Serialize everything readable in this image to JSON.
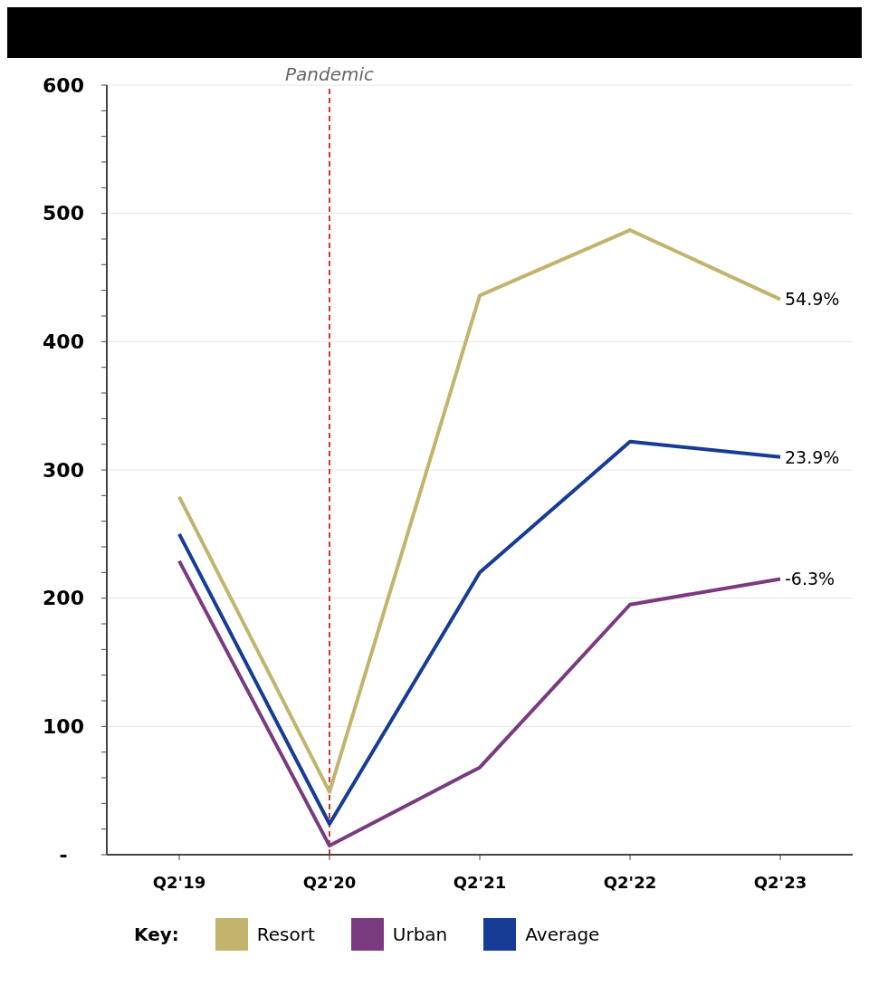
{
  "chart_data": {
    "type": "line",
    "categories": [
      "Q2'19",
      "Q2'20",
      "Q2'21",
      "Q2'22",
      "Q2'23"
    ],
    "series": [
      {
        "name": "Resort",
        "color": "#c2b46c",
        "values": [
          279,
          49,
          436,
          487,
          433
        ]
      },
      {
        "name": "Urban",
        "color": "#7b3a80",
        "values": [
          229,
          7,
          68,
          195,
          215
        ]
      },
      {
        "name": "Average",
        "color": "#163c96",
        "values": [
          250,
          24,
          220,
          322,
          310
        ]
      }
    ],
    "ylim": [
      0,
      600
    ],
    "yticks": [
      {
        "value": 0,
        "label": "-"
      },
      {
        "value": 20,
        "label": null
      },
      {
        "value": 40,
        "label": null
      },
      {
        "value": 60,
        "label": null
      },
      {
        "value": 80,
        "label": null
      },
      100,
      {
        "value": 120,
        "label": null
      },
      {
        "value": 140,
        "label": null
      },
      {
        "value": 160,
        "label": null
      },
      {
        "value": 180,
        "label": null
      },
      200,
      {
        "value": 220,
        "label": null
      },
      {
        "value": 240,
        "label": null
      },
      {
        "value": 260,
        "label": null
      },
      {
        "value": 280,
        "label": null
      },
      300,
      {
        "value": 320,
        "label": null
      },
      {
        "value": 340,
        "label": null
      },
      {
        "value": 360,
        "label": null
      },
      {
        "value": 380,
        "label": null
      },
      400,
      {
        "value": 420,
        "label": null
      },
      {
        "value": 440,
        "label": null
      },
      {
        "value": 460,
        "label": null
      },
      {
        "value": 480,
        "label": null
      },
      500,
      {
        "value": 520,
        "label": null
      },
      {
        "value": 540,
        "label": null
      },
      {
        "value": 560,
        "label": null
      },
      {
        "value": 580,
        "label": null
      },
      600
    ],
    "grid": "y",
    "legend": "bottom",
    "legend_title": "Key:",
    "marker": "none",
    "line_style": "solid",
    "ref_lines": [
      {
        "axis": "x",
        "value": "Q2'20",
        "label": "Pandemic",
        "color": "#e03030",
        "line_style": "dashed"
      }
    ],
    "annotations": [
      {
        "text": "54.9%",
        "x": "Q2'23",
        "y": 433
      },
      {
        "text": "23.9%",
        "x": "Q2'23",
        "y": 310
      },
      {
        "text": "-6.3%",
        "x": "Q2'23",
        "y": 215
      }
    ]
  }
}
